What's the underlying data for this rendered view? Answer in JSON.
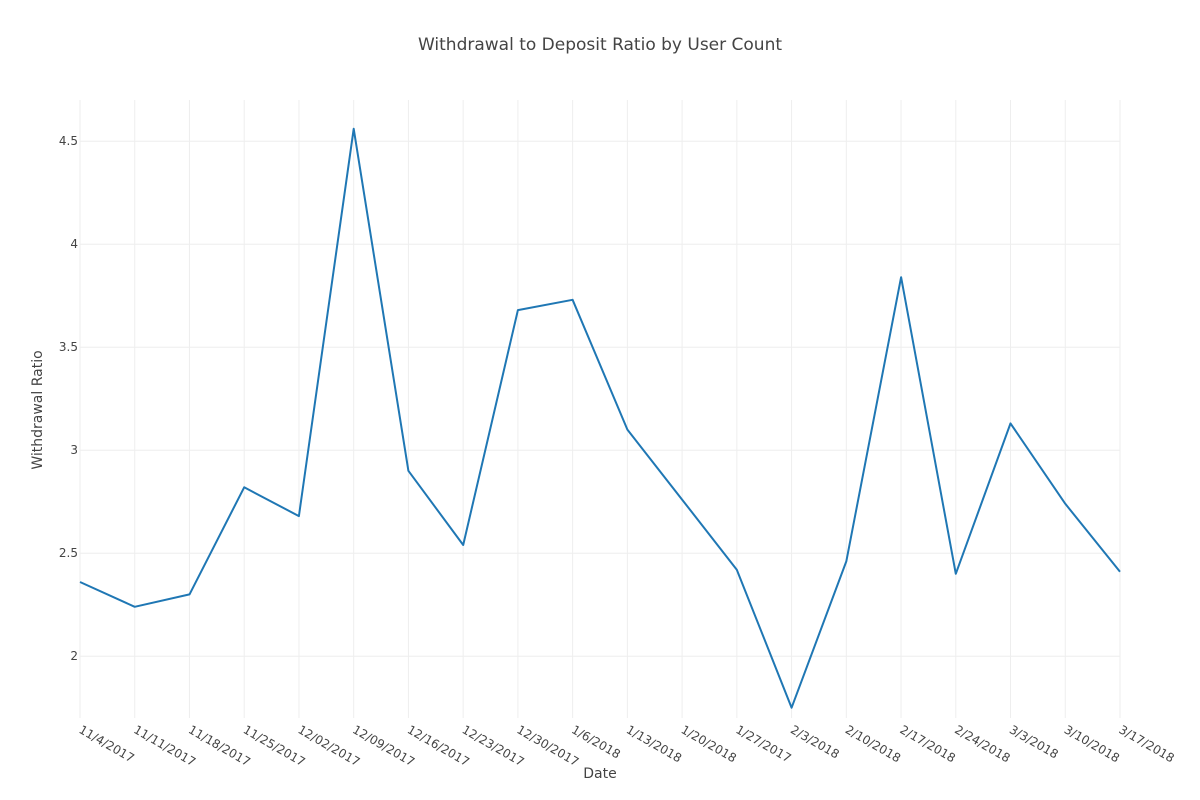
{
  "chart_data": {
    "type": "line",
    "title": "Withdrawal to Deposit Ratio by User Count",
    "xlabel": "Date",
    "ylabel": "Withdrawal Ratio",
    "ylim": [
      1.7,
      4.7
    ],
    "y_ticks": [
      2,
      2.5,
      3,
      3.5,
      4,
      4.5
    ],
    "y_tick_labels": [
      "2",
      "2.5",
      "3",
      "3.5",
      "4",
      "4.5"
    ],
    "grid": true,
    "legend": "none",
    "categories": [
      "11/4/2017",
      "11/11/2017",
      "11/18/2017",
      "11/25/2017",
      "12/02/2017",
      "12/09/2017",
      "12/16/2017",
      "12/23/2017",
      "12/30/2017",
      "1/6/2018",
      "1/13/2018",
      "1/20/2018",
      "1/27/2017",
      "2/3/2018",
      "2/10/2018",
      "2/17/2018",
      "2/24/2018",
      "3/3/2018",
      "3/10/2018",
      "3/17/2018"
    ],
    "series": [
      {
        "color": "#1f77b4",
        "values": [
          2.36,
          2.24,
          2.3,
          2.82,
          2.68,
          4.56,
          2.9,
          2.54,
          3.68,
          3.73,
          3.1,
          2.76,
          2.42,
          1.75,
          2.46,
          3.84,
          2.4,
          3.13,
          2.74,
          2.41
        ]
      }
    ]
  }
}
